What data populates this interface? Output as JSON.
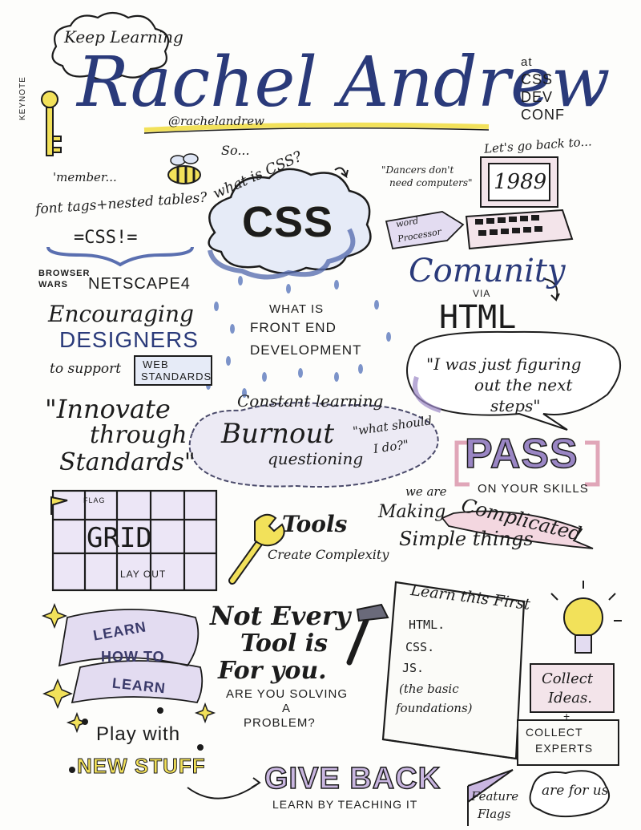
{
  "header": {
    "keep_learning": "Keep Learning",
    "speaker_name": "Rachel Andrew",
    "handle": "@rachelandrew",
    "keynote_label": "KEYNOTE",
    "event": [
      "at",
      "CSS",
      "DEV",
      "CONF"
    ]
  },
  "top_left": {
    "member": "'member...",
    "font_tags": "font tags+nested tables?",
    "css_bang": "=CSS!=",
    "browser_wars": [
      "BROWSER",
      "WARS"
    ],
    "netscape": "NETSCAPE4",
    "encouraging": "Encouraging",
    "designers": "DESIGNERS",
    "to_support": "to support",
    "web_standards": [
      "WEB",
      "STANDARDS"
    ]
  },
  "center": {
    "so_what": "So...",
    "what_is_css": "what is CSS?",
    "css": "CSS",
    "front_end": [
      "WHAT IS",
      "FRONT END",
      "DEVELOPMENT"
    ],
    "constant_learning": "Constant learning",
    "burnout": "Burnout",
    "questioning": "questioning",
    "what_should": [
      "\"what should",
      "I do?\""
    ]
  },
  "right": {
    "lets_go_back": "Let's go back to...",
    "dancers": [
      "\"Dancers don't",
      "need computers\""
    ],
    "year": "1989",
    "word_processor": [
      "word",
      "Processor"
    ],
    "community": "Comunity",
    "via": "VIA",
    "html": "HTML",
    "quote": [
      "\"I was just figuring",
      "out the next",
      "steps\""
    ],
    "pass": "PASS",
    "we_are": "we are",
    "on_your_skills": "ON YOUR SKILLS"
  },
  "middle": {
    "innovate": [
      "\"Innovate",
      "through",
      "Standards\""
    ],
    "flag": "FLAG",
    "grid": "GRID",
    "layout": "LAY OUT",
    "tools": "Tools",
    "create_complexity": "Create Complexity",
    "making": "Making",
    "complicated": "Complicated",
    "simple_things": "Simple things"
  },
  "bottom": {
    "learn_how": [
      "LEARN",
      "HOW TO",
      "LEARN"
    ],
    "not_every_tool": [
      "Not Every",
      "Tool is",
      "For you."
    ],
    "solving": [
      "ARE YOU SOLVING",
      "A",
      "PROBLEM?"
    ],
    "learn_first_title": "Learn this First",
    "learn_first_items": [
      "HTML.",
      "CSS.",
      "JS.",
      "(the basic",
      "foundations)"
    ],
    "collect_ideas": [
      "Collect",
      "Ideas."
    ],
    "plus": "+",
    "collect_experts": [
      "COLLECT",
      "EXPERTS"
    ],
    "play_with": "Play with",
    "new_stuff": "NEW STUFF",
    "give_back": "GIVE BACK",
    "learn_teaching": "LEARN BY TEACHING IT",
    "feature_flags": [
      "Feature",
      "Flags"
    ],
    "are_for_us": "are for us"
  },
  "colors": {
    "ink": "#1c1c1c",
    "blue": "#5a6fb0",
    "yellow": "#f2e15a",
    "purple": "#9a86c4",
    "pink": "#e0a6b8"
  }
}
